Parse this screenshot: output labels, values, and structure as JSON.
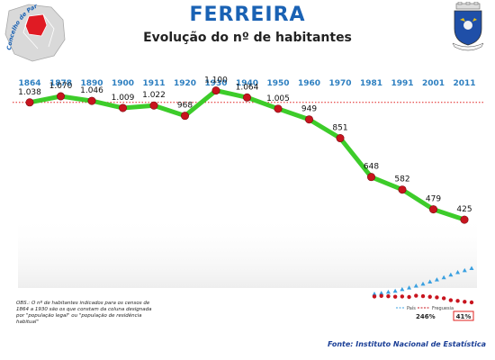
{
  "header": {
    "title": "FERREIRA",
    "subtitle": "Evolução do nº de habitantes",
    "map_caption": "Concelho de Paredes de Coura"
  },
  "chart_data": {
    "type": "line",
    "x": [
      "1864",
      "1878",
      "1890",
      "1900",
      "1911",
      "1920",
      "1930",
      "1940",
      "1950",
      "1960",
      "1970",
      "1981",
      "1991",
      "2001",
      "2011"
    ],
    "values": [
      1038,
      1070,
      1046,
      1009,
      1022,
      968,
      1100,
      1064,
      1005,
      949,
      851,
      648,
      582,
      479,
      425
    ],
    "value_labels": [
      "1.038",
      "1.070",
      "1.046",
      "1.009",
      "1.022",
      "968",
      "1.100",
      "1.064",
      "1.005",
      "949",
      "851",
      "648",
      "582",
      "479",
      "425"
    ],
    "reference_line": 1038,
    "ylim": [
      350,
      1150
    ],
    "colors": {
      "line": "#3dcc2a",
      "marker": "#c8141e",
      "reference": "#e0201e",
      "year": "#2d7fc0"
    }
  },
  "inset": {
    "legend": [
      "País",
      "Freguesia"
    ],
    "pais_pct": "246%",
    "freguesia_pct": "41%",
    "pais_trend": [
      0.05,
      0.08,
      0.12,
      0.16,
      0.22,
      0.28,
      0.35,
      0.42,
      0.5,
      0.58,
      0.66,
      0.76,
      0.85,
      0.92,
      1.0
    ],
    "freguesia_trend": [
      0.55,
      0.6,
      0.57,
      0.53,
      0.55,
      0.5,
      0.62,
      0.58,
      0.52,
      0.46,
      0.38,
      0.2,
      0.14,
      0.06,
      0.0
    ],
    "colors": {
      "pais": "#3aa0e0",
      "freguesia": "#c8141e",
      "highlight": "#e0201e"
    }
  },
  "note": "OBS.: O nº de habitantes indicados para os censos de 1864 a 1930 são os que constam da coluna designada por \"população legal\" ou \"população de residência habitual\"",
  "source": "Fonte: Instituto Nacional de Estatística"
}
